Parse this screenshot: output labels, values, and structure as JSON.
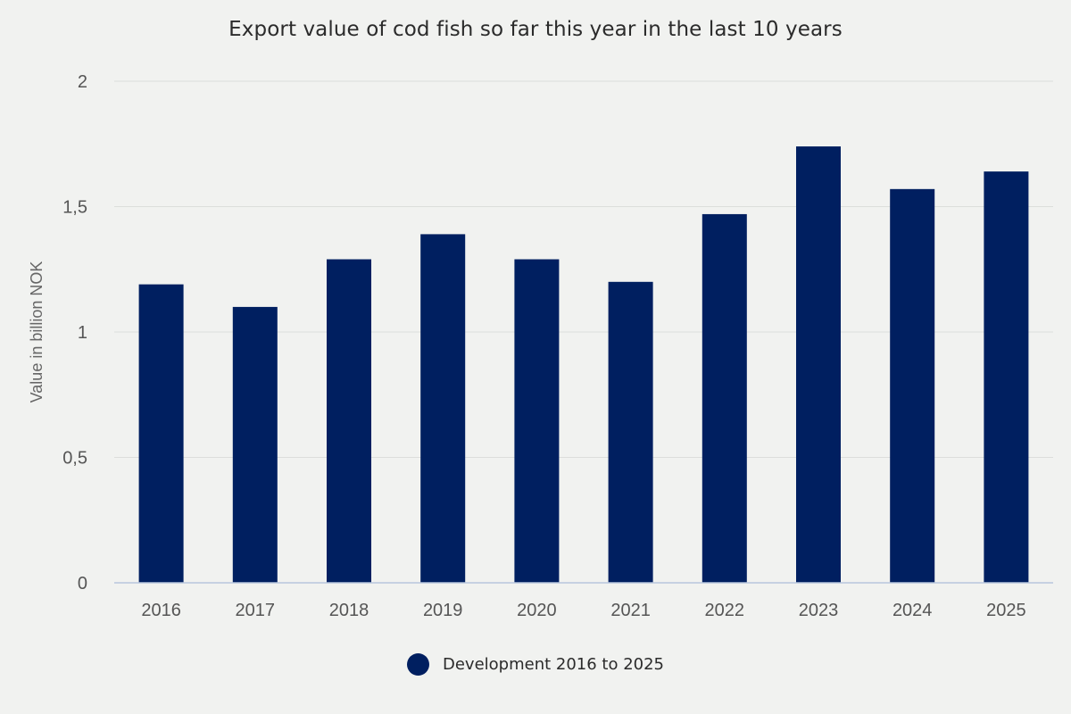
{
  "chart_data": {
    "type": "bar",
    "title": "Export value of cod fish so far this year in the last 10 years",
    "xlabel": "",
    "ylabel": "Value in billion NOK",
    "categories": [
      "2016",
      "2017",
      "2018",
      "2019",
      "2020",
      "2021",
      "2022",
      "2023",
      "2024",
      "2025"
    ],
    "series": [
      {
        "name": "Development 2016 to 2025",
        "values": [
          1.19,
          1.1,
          1.29,
          1.39,
          1.29,
          1.2,
          1.47,
          1.74,
          1.57,
          1.64
        ],
        "color": "#001f60"
      }
    ],
    "ylim": [
      0,
      2
    ],
    "yticks": [
      0,
      0.5,
      1,
      1.5,
      2
    ],
    "ytick_labels": [
      "0",
      "0,5",
      "1",
      "1,5",
      "2"
    ],
    "grid": true,
    "legend": "bottom-center"
  }
}
